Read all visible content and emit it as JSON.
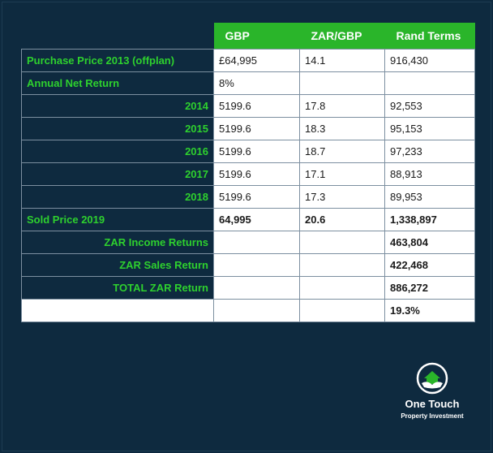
{
  "headers": [
    "",
    "GBP",
    "ZAR/GBP",
    "Rand Terms"
  ],
  "rows": [
    {
      "label": "Purchase Price 2013 (offplan)",
      "gbp": "£64,995",
      "rate": "14.1",
      "rand": "916,430"
    },
    {
      "label": "Annual Net Return",
      "gbp": "8%",
      "rate": "",
      "rand": ""
    },
    {
      "label": "2014",
      "gbp": "5199.6",
      "rate": "17.8",
      "rand": "92,553"
    },
    {
      "label": "2015",
      "gbp": "5199.6",
      "rate": "18.3",
      "rand": "95,153"
    },
    {
      "label": "2016",
      "gbp": "5199.6",
      "rate": "18.7",
      "rand": "97,233"
    },
    {
      "label": "2017",
      "gbp": "5199.6",
      "rate": "17.1",
      "rand": "88,913"
    },
    {
      "label": "2018",
      "gbp": "5199.6",
      "rate": "17.3",
      "rand": "89,953"
    },
    {
      "label": "Sold Price 2019",
      "gbp": "64,995",
      "rate": "20.6",
      "rand": "1,338,897"
    },
    {
      "label": "ZAR Income Returns",
      "gbp": "",
      "rate": "",
      "rand": "463,804"
    },
    {
      "label": "ZAR Sales Return",
      "gbp": "",
      "rate": "",
      "rand": "422,468"
    },
    {
      "label": "TOTAL ZAR Return",
      "gbp": "",
      "rate": "",
      "rand": "886,272"
    },
    {
      "label": "",
      "gbp": "",
      "rate": "",
      "rand": "19.3%"
    }
  ],
  "logo": {
    "name": "One Touch",
    "tagline": "Property Investment",
    "icon": "house-hands-icon"
  },
  "colors": {
    "background": "#0e2a3f",
    "accent": "#2ab52a",
    "label": "#2ed12e"
  }
}
